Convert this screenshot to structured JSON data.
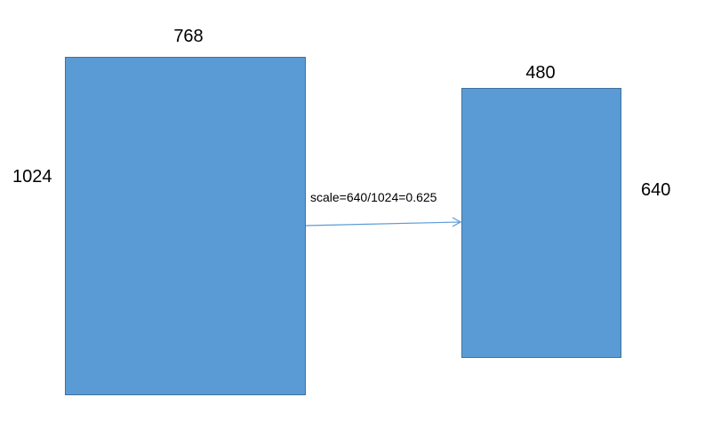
{
  "left_box": {
    "width_label": "768",
    "height_label": "1024"
  },
  "right_box": {
    "width_label": "480",
    "height_label": "640"
  },
  "arrow": {
    "label": "scale=640/1024=0.625"
  },
  "colors": {
    "box_fill": "#5b9bd5",
    "box_border": "#41719c",
    "arrow": "#5b9bd5"
  }
}
